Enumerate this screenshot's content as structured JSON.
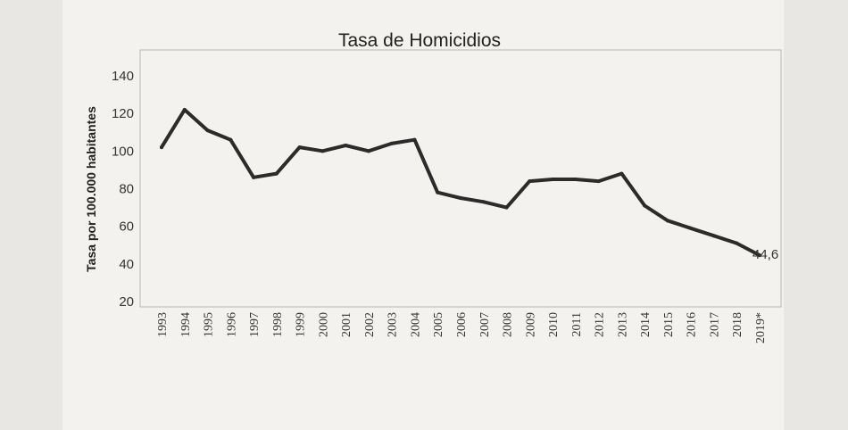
{
  "chart_data": {
    "type": "line",
    "title": "Tasa de Homicidios",
    "ylabel": "Tasa por 100.000 habitantes",
    "xlabel": "",
    "ylim": [
      20,
      140
    ],
    "yticks": [
      20,
      40,
      60,
      80,
      100,
      120,
      140
    ],
    "grid": false,
    "legend": "none",
    "categories": [
      "1993",
      "1994",
      "1995",
      "1996",
      "1997",
      "1998",
      "1999",
      "2000",
      "2001",
      "2002",
      "2003",
      "2004",
      "2005",
      "2006",
      "2007",
      "2008",
      "2009",
      "2010",
      "2011",
      "2012",
      "2013",
      "2014",
      "2015",
      "2016",
      "2017",
      "2018",
      "2019*"
    ],
    "series": [
      {
        "values": [
          102,
          122,
          111,
          106,
          86,
          88,
          102,
          100,
          103,
          100,
          104,
          106,
          78,
          75,
          73,
          70,
          84,
          85,
          85,
          84,
          88,
          71,
          63,
          59,
          55,
          51,
          44.6
        ],
        "color": "#2b2b2b"
      }
    ],
    "end_label": "44,6"
  }
}
